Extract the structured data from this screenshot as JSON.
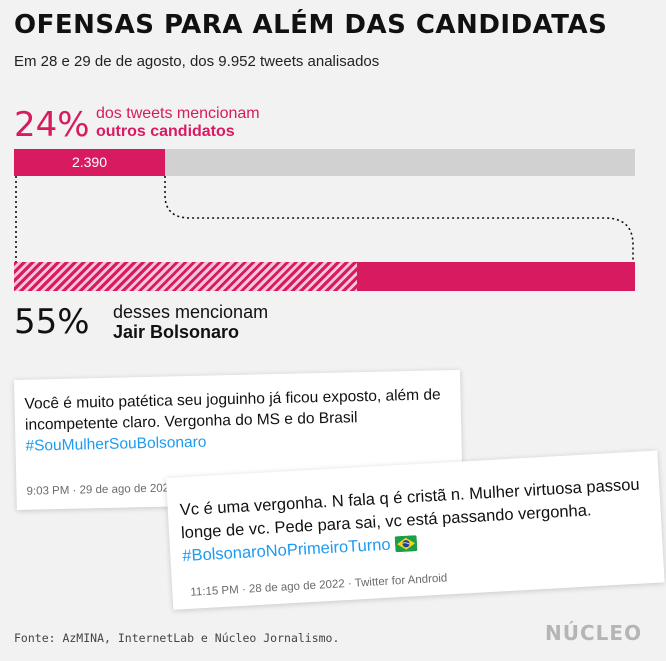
{
  "header": {
    "title": "OFENSAS PARA ALÉM DAS CANDIDATAS",
    "subtitle": "Em 28 e 29 de de agosto, dos 9.952 tweets analisados"
  },
  "stat1": {
    "percent": "24%",
    "label_line1": "dos tweets mencionam",
    "label_line2": "outros candidatos",
    "bar_value": "2.390",
    "bar_fraction": 0.24
  },
  "stat2": {
    "percent": "55%",
    "label_line1": "desses mencionam",
    "label_line2": "Jair Bolsonaro",
    "bar_fraction": 0.55
  },
  "tweets": [
    {
      "text": "Você é muito patética seu joguinho já ficou exposto, além de incompetente claro. Vergonha do MS e do Brasil",
      "hashtag": "#SouMulherSouBolsonaro",
      "meta": "9:03 PM · 29 de ago de 2022"
    },
    {
      "text": "Vc é uma vergonha. N fala q é cristã n. Mulher virtuosa passou longe de vc. Pede para sai, vc está passando vergonha.",
      "hashtag": "#BolsonaroNoPrimeiroTurno",
      "meta": "11:15 PM · 28 de ago de 2022 · Twitter for Android"
    }
  ],
  "footer": {
    "source": "Fonte: AzMINA, InternetLab e Núcleo Jornalismo.",
    "logo": "NÚCLEO"
  },
  "colors": {
    "accent": "#d81b60",
    "bar_background": "#d1d1d1",
    "hashtag": "#1d9bf0"
  },
  "icons": [
    "brazil-flag-icon"
  ]
}
